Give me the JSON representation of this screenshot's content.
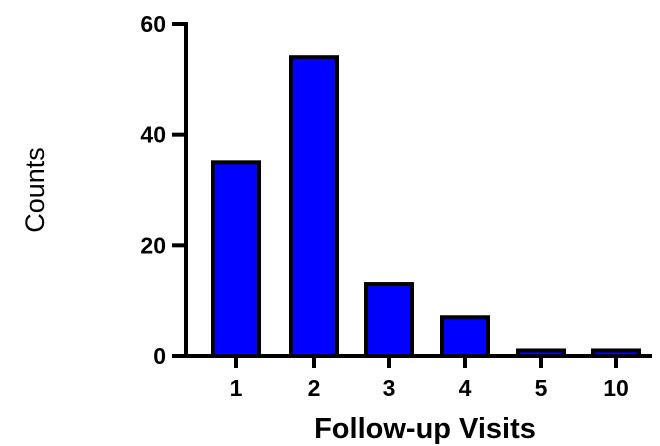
{
  "chart_data": {
    "type": "bar",
    "title": "",
    "xlabel": "Follow-up Visits",
    "ylabel": "Counts",
    "categories": [
      "1",
      "2",
      "3",
      "4",
      "5",
      "10"
    ],
    "values": [
      35,
      54,
      13,
      7,
      1,
      1
    ],
    "ylim": [
      0,
      60
    ],
    "yticks": [
      "0",
      "20",
      "40",
      "60"
    ],
    "grid": false,
    "legend": "none",
    "bar_color": "#0000FF",
    "edge_color": "#000000"
  }
}
